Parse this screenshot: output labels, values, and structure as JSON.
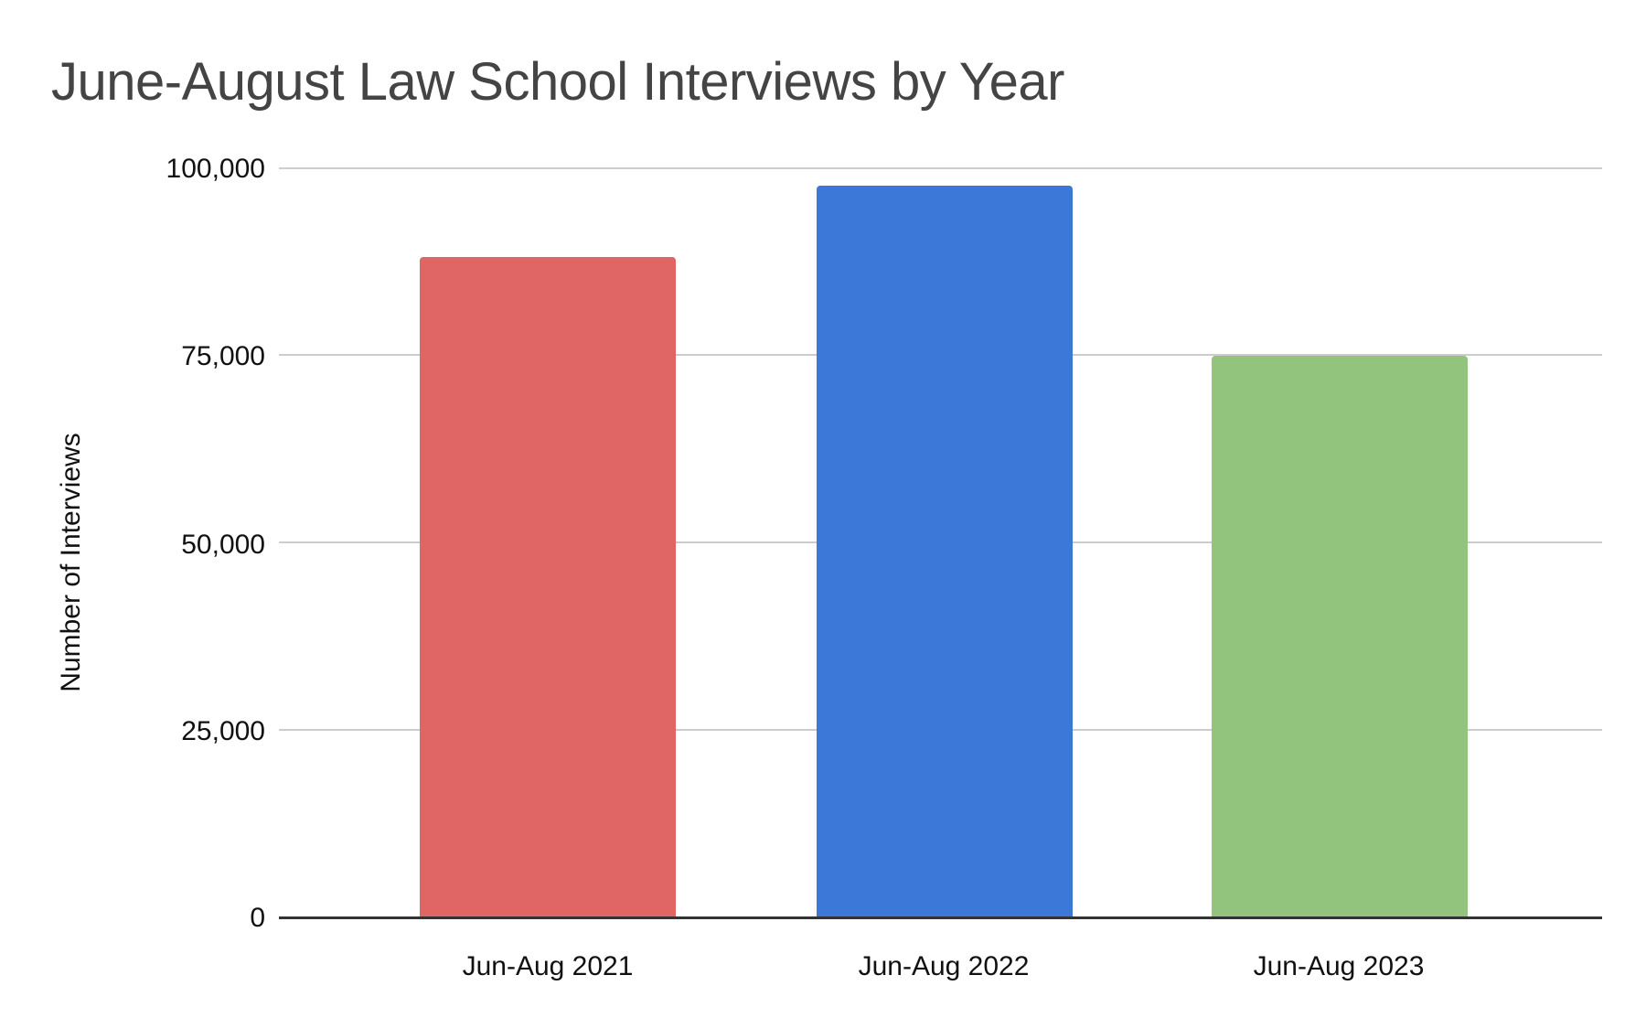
{
  "chart_data": {
    "type": "bar",
    "title": "June-August Law School Interviews by Year",
    "xlabel": "",
    "ylabel": "Number of Interviews",
    "categories": [
      "Jun-Aug 2021",
      "Jun-Aug 2022",
      "Jun-Aug 2023"
    ],
    "values": [
      88000,
      97600,
      74900
    ],
    "colors": [
      "#e06666",
      "#3c78d8",
      "#93c47d"
    ],
    "ylim": [
      0,
      100000
    ],
    "yticks": [
      "0",
      "25,000",
      "50,000",
      "75,000",
      "100,000"
    ],
    "grid": true,
    "legend": "none"
  },
  "labels": {
    "title": "June-August Law School Interviews by Year",
    "ylabel": "Number of Interviews",
    "yticks": [
      "100,000",
      "75,000",
      "50,000",
      "25,000",
      "0"
    ],
    "xticks": [
      "Jun-Aug 2021",
      "Jun-Aug 2022",
      "Jun-Aug 2023"
    ]
  }
}
